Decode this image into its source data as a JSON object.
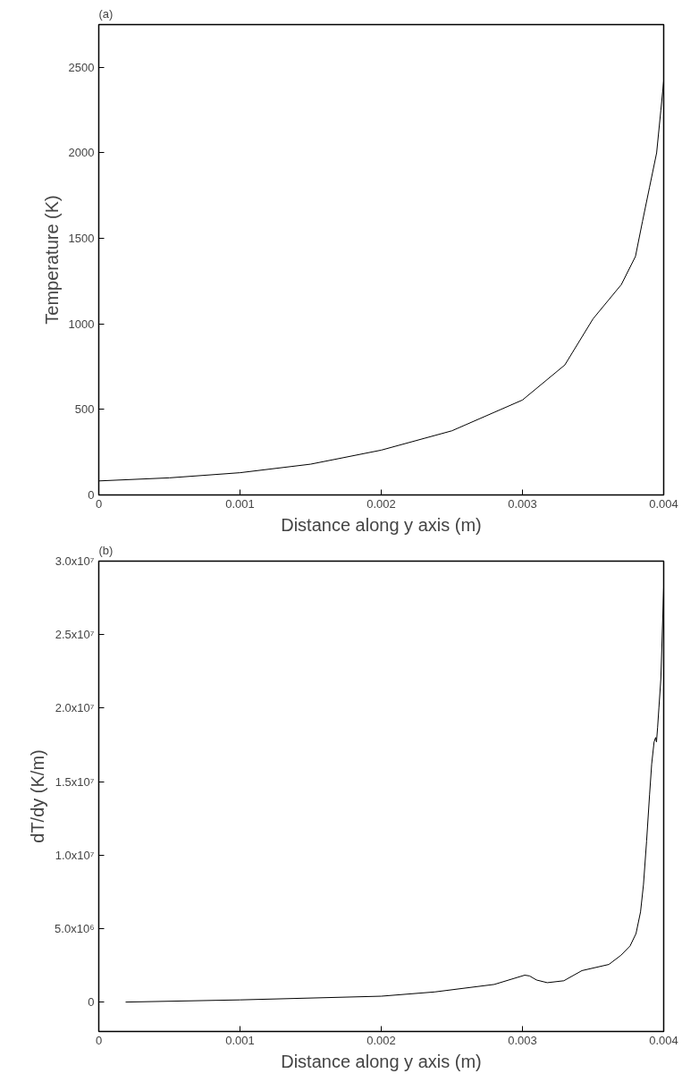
{
  "chart_data": [
    {
      "type": "line",
      "title": "(a)",
      "xlabel": "Distance along y axis (m)",
      "ylabel": "Temperature (K)",
      "xlim": [
        0,
        0.004
      ],
      "ylim": [
        0,
        2750
      ],
      "xticks": [
        0,
        0.001,
        0.002,
        0.003,
        0.004
      ],
      "yticks": [
        0,
        500,
        1000,
        1500,
        2000,
        2500
      ],
      "grid": false,
      "series": [
        {
          "color": "#000000",
          "x": [
            0,
            0.0005,
            0.001,
            0.0015,
            0.002,
            0.0025,
            0.003,
            0.0033,
            0.0035,
            0.0037,
            0.0038,
            0.00385,
            0.0039,
            0.00395,
            0.00398,
            0.004
          ],
          "values": [
            82,
            100,
            130,
            180,
            262,
            375,
            555,
            760,
            1030,
            1230,
            1394,
            1600,
            1800,
            2000,
            2250,
            2420
          ]
        }
      ]
    },
    {
      "type": "line",
      "title": "(b)",
      "xlabel": "Distance along y axis (m)",
      "ylabel": "dT/dy (K/m)",
      "xlim": [
        0,
        0.004
      ],
      "ylim": [
        -2000000,
        30000000
      ],
      "xticks": [
        0,
        0.001,
        0.002,
        0.003,
        0.004
      ],
      "yticks": [
        0,
        {
          "value": 5000000,
          "label": "5.0x10⁶"
        },
        {
          "value": 10000000,
          "label": "1.0x10⁷"
        },
        {
          "value": 15000000,
          "label": "1.5x10⁷"
        },
        {
          "value": 20000000,
          "label": "2.0x10⁷"
        },
        {
          "value": 25000000,
          "label": "2.5x10⁷"
        },
        {
          "value": 30000000,
          "label": "3.0x10⁷"
        }
      ],
      "grid": false,
      "series": [
        {
          "color": "#000000",
          "x": [
            0.00019,
            0.001,
            0.002,
            0.002378,
            0.0028,
            0.003016,
            0.00305,
            0.0031,
            0.003176,
            0.003293,
            0.003421,
            0.003612,
            0.003698,
            0.003762,
            0.003804,
            0.003836,
            0.003857,
            0.003879,
            0.0039,
            0.003915,
            0.003932,
            0.003943,
            0.003949,
            0.003957,
            0.003966,
            0.00398,
            0.004
          ],
          "values": [
            0,
            150000,
            400000,
            690000,
            1200000,
            1830000,
            1780000,
            1500000,
            1320000,
            1450000,
            2140000,
            2560000,
            3190000,
            3820000,
            4660000,
            6130000,
            8000000,
            10960000,
            14100000,
            16200000,
            17700000,
            18000000,
            17700000,
            18700000,
            20000000,
            22000000,
            28200000
          ]
        }
      ]
    }
  ]
}
